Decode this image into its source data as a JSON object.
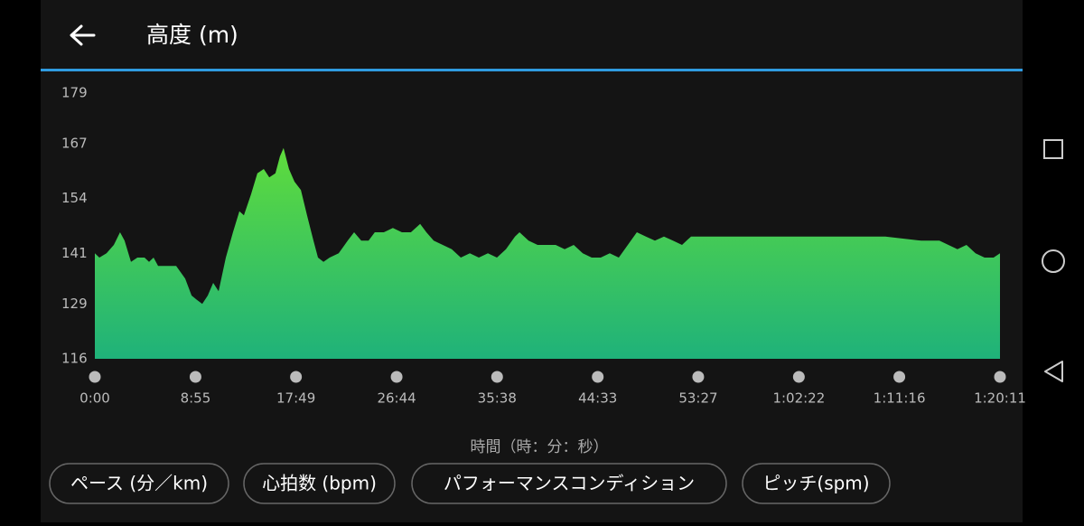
{
  "header": {
    "title": "高度 (m)"
  },
  "chart_data": {
    "type": "area",
    "x_label": "時間（時：分：秒）",
    "x": [
      0,
      24,
      62,
      101,
      134,
      158,
      192,
      226,
      264,
      288,
      312,
      336,
      360,
      432,
      480,
      514,
      542,
      571,
      600,
      629,
      658,
      696,
      734,
      768,
      792,
      830,
      864,
      898,
      927,
      960,
      984,
      1003,
      1032,
      1061,
      1095,
      1128,
      1162,
      1186,
      1215,
      1248,
      1296,
      1344,
      1378,
      1416,
      1455,
      1488,
      1536,
      1584,
      1632,
      1680,
      1729,
      1762,
      1801,
      1849,
      1897,
      1945,
      1993,
      2041,
      2089,
      2137,
      2185,
      2233,
      2257,
      2305,
      2353,
      2401,
      2449,
      2497,
      2545,
      2593,
      2641,
      2689,
      2737,
      2785,
      2833,
      2881,
      2929,
      2977,
      3025,
      3073,
      3121,
      3169,
      3241,
      3337,
      3481,
      3625,
      3817,
      4009,
      4201,
      4393,
      4489,
      4537,
      4585,
      4633,
      4681,
      4729,
      4777,
      4811
    ],
    "values": [
      141,
      140,
      141,
      143,
      146,
      144,
      139,
      140,
      140,
      139,
      140,
      138,
      138,
      138,
      135,
      131,
      130,
      129,
      131,
      134,
      132,
      140,
      146,
      151,
      150,
      155,
      160,
      161,
      159,
      160,
      164,
      166,
      161,
      158,
      156,
      150,
      144,
      140,
      139,
      140,
      141,
      144,
      146,
      144,
      144,
      146,
      146,
      147,
      146,
      146,
      148,
      146,
      144,
      143,
      142,
      140,
      141,
      140,
      141,
      140,
      142,
      145,
      146,
      144,
      143,
      143,
      143,
      142,
      143,
      141,
      140,
      140,
      141,
      140,
      143,
      146,
      145,
      144,
      145,
      144,
      143,
      145,
      145,
      145,
      145,
      145,
      145,
      145,
      145,
      144,
      144,
      143,
      142,
      143,
      141,
      140,
      140,
      141
    ],
    "fill_gradient": [
      "#5fdc3c",
      "#1fb27a"
    ],
    "xlim": [
      0,
      4811
    ],
    "ylim": [
      116,
      179
    ],
    "yticks": [
      116,
      129,
      141,
      154,
      167,
      179
    ],
    "xticks": [
      {
        "value": 0,
        "label": "0:00"
      },
      {
        "value": 535,
        "label": "8:55"
      },
      {
        "value": 1069,
        "label": "17:49"
      },
      {
        "value": 1604,
        "label": "26:44"
      },
      {
        "value": 2138,
        "label": "35:38"
      },
      {
        "value": 2673,
        "label": "44:33"
      },
      {
        "value": 3207,
        "label": "53:27"
      },
      {
        "value": 3742,
        "label": "1:02:22"
      },
      {
        "value": 4276,
        "label": "1:11:16"
      },
      {
        "value": 4811,
        "label": "1:20:11"
      }
    ]
  },
  "buttons": [
    "ペース (分／km)",
    "心拍数 (bpm)",
    "パフォーマンスコンディション",
    "ピッチ(spm)"
  ]
}
